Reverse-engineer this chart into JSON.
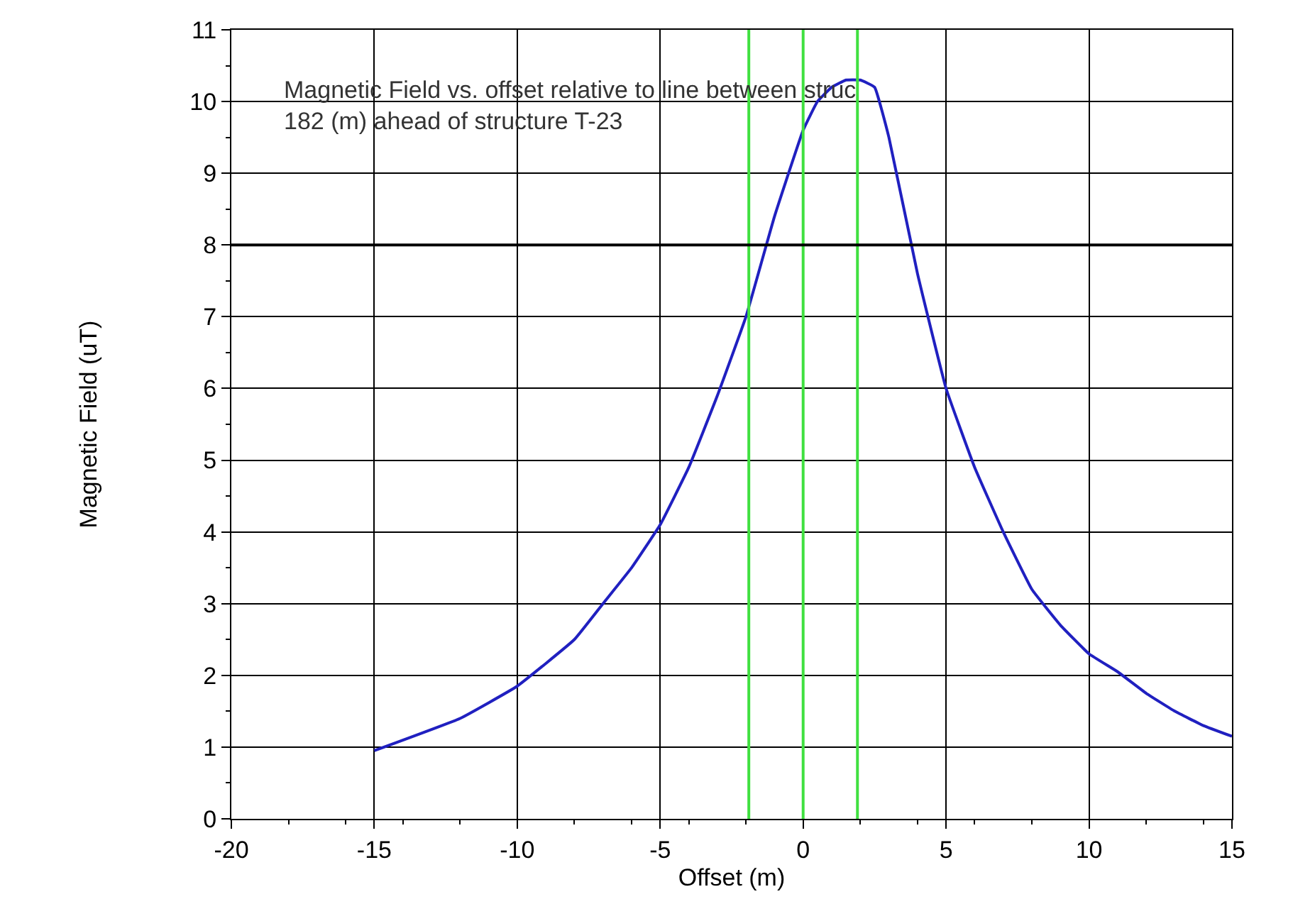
{
  "chart_data": {
    "type": "line",
    "title": "Magnetic Field vs. offset relative to line between struc\n182 (m) ahead of structure T-23",
    "xlabel": "Offset (m)",
    "ylabel": "Magnetic Field (uT)",
    "series": [
      {
        "color": "#2020c0",
        "x": [
          -15,
          -12,
          -10,
          -8,
          -7,
          -6,
          -5,
          -4,
          -3,
          -2,
          -1,
          0,
          0.5,
          1,
          1.5,
          2,
          2.5,
          3,
          4,
          5,
          6,
          7,
          8,
          9,
          10,
          11,
          12,
          13,
          14,
          15
        ],
        "values": [
          0.95,
          1.4,
          1.85,
          2.5,
          3.0,
          3.5,
          4.1,
          4.9,
          5.9,
          7.0,
          8.4,
          9.6,
          10.0,
          10.2,
          10.3,
          10.3,
          10.2,
          9.5,
          7.6,
          6.0,
          4.9,
          4.0,
          3.2,
          2.7,
          2.3,
          2.05,
          1.75,
          1.5,
          1.3,
          1.15
        ]
      }
    ],
    "ref_lines": [
      {
        "axis": "x",
        "value": -1.9,
        "color": "#40e040"
      },
      {
        "axis": "x",
        "value": 0,
        "color": "#40e040"
      },
      {
        "axis": "x",
        "value": 1.9,
        "color": "#40e040"
      },
      {
        "axis": "y",
        "value": 8,
        "color": "#000000"
      }
    ],
    "xlim": [
      -20,
      15
    ],
    "xticks": [
      -20,
      -15,
      -10,
      -5,
      0,
      5,
      10,
      15
    ],
    "ylim": [
      0,
      11
    ],
    "yticks": [
      0,
      1,
      2,
      3,
      4,
      5,
      6,
      7,
      8,
      9,
      10,
      11
    ],
    "grid": true,
    "marker": "none",
    "line_style": "solid"
  }
}
